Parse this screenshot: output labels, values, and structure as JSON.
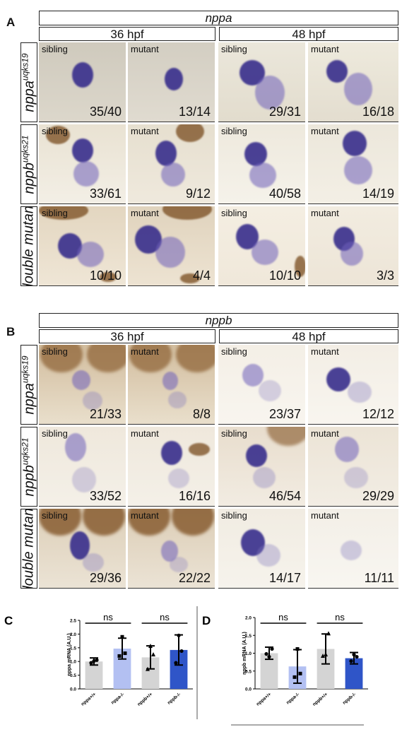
{
  "panelA": {
    "letter": "A",
    "gene": "nppa",
    "time1": "36 hpf",
    "time2": "48 hpf",
    "rows": [
      {
        "base": "nppa",
        "sup": "uqks19",
        "counts": [
          "35/40",
          "13/14",
          "29/31",
          "16/18"
        ]
      },
      {
        "base": "nppb",
        "sup": "uqks21",
        "counts": [
          "33/61",
          "9/12",
          "40/58",
          "14/19"
        ]
      },
      {
        "base": "double mutant",
        "sup": "",
        "counts": [
          "10/10",
          "4/4",
          "10/10",
          "3/3"
        ]
      }
    ]
  },
  "panelB": {
    "letter": "B",
    "gene": "nppb",
    "time1": "36 hpf",
    "time2": "48 hpf",
    "rows": [
      {
        "base": "nppa",
        "sup": "uqks19",
        "counts": [
          "21/33",
          "8/8",
          "23/37",
          "12/12"
        ]
      },
      {
        "base": "nppb",
        "sup": "uqks21",
        "counts": [
          "33/52",
          "16/16",
          "46/54",
          "29/29"
        ]
      },
      {
        "base": "double mutant",
        "sup": "",
        "counts": [
          "29/36",
          "22/22",
          "14/17",
          "11/11"
        ]
      }
    ]
  },
  "genotypes": [
    "sibling",
    "mutant",
    "sibling",
    "mutant"
  ],
  "chart_data": [
    {
      "type": "bar",
      "letter": "C",
      "ylabel": "nppa mRNA (A.U.)",
      "ylim": [
        0,
        2.5
      ],
      "yticks": [
        "0.0",
        "0.5",
        "1.0",
        "1.5",
        "2.0",
        "2.5"
      ],
      "categories": [
        "nppa+/+",
        "nppa-/-",
        "nppb+/+",
        "nppb-/-"
      ],
      "values": [
        1.0,
        1.47,
        1.15,
        1.42
      ],
      "errors": [
        0.13,
        0.38,
        0.42,
        0.55
      ],
      "bar_colors": [
        "#d4d4d4",
        "#b3c0f2",
        "#d4d4d4",
        "#2f55c8"
      ],
      "points": [
        [
          0.95,
          1.05,
          1.02
        ],
        [
          1.2,
          1.3,
          1.9
        ],
        [
          0.72,
          1.25,
          1.56
        ],
        [
          0.95,
          1.38,
          1.95
        ]
      ],
      "markers": [
        "circle",
        "square",
        "triangle",
        "circle"
      ],
      "comparisons": [
        {
          "label": "ns",
          "from": 0,
          "to": 1
        },
        {
          "label": "ns",
          "from": 2,
          "to": 3
        }
      ]
    },
    {
      "type": "bar",
      "letter": "D",
      "ylabel": "nppb mRNA (A.U.)",
      "ylim": [
        0,
        2.0
      ],
      "yticks": [
        "0.0",
        "0.5",
        "1.0",
        "1.5",
        "2.0"
      ],
      "categories": [
        "nppa+/+",
        "nppa-/-",
        "nppb+/+",
        "nppb-/-"
      ],
      "values": [
        1.0,
        0.63,
        1.12,
        0.86
      ],
      "errors": [
        0.17,
        0.47,
        0.42,
        0.16
      ],
      "bar_colors": [
        "#d4d4d4",
        "#b3c0f2",
        "#d4d4d4",
        "#2f55c8"
      ],
      "points": [
        [
          0.98,
          1.12,
          0.9
        ],
        [
          0.33,
          0.43,
          1.12
        ],
        [
          0.92,
          1.55,
          0.96
        ],
        [
          0.78,
          0.9,
          0.96
        ]
      ],
      "markers": [
        "circle",
        "square",
        "triangle",
        "circle"
      ],
      "comparisons": [
        {
          "label": "ns",
          "from": 0,
          "to": 1
        },
        {
          "label": "ns",
          "from": 2,
          "to": 3
        }
      ]
    }
  ]
}
